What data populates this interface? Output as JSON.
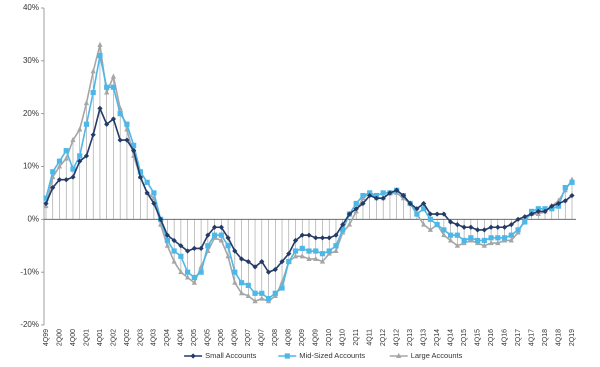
{
  "chart_data": {
    "type": "line",
    "categories": [
      "4Q99",
      null,
      "2Q00",
      null,
      "4Q00",
      null,
      "2Q01",
      null,
      "4Q01",
      null,
      "2Q02",
      null,
      "4Q02",
      null,
      "2Q03",
      null,
      "4Q03",
      null,
      "2Q04",
      null,
      "4Q04",
      null,
      "2Q05",
      null,
      "4Q05",
      null,
      "2Q06",
      null,
      "4Q06",
      null,
      "2Q07",
      null,
      "4Q07",
      null,
      "2Q08",
      null,
      "4Q08",
      null,
      "2Q09",
      null,
      "4Q09",
      null,
      "2Q10",
      null,
      "4Q10",
      null,
      "2Q11",
      null,
      "4Q11",
      null,
      "2Q12",
      null,
      "4Q12",
      null,
      "2Q13",
      null,
      "4Q13",
      null,
      "2Q14",
      null,
      "4Q14",
      null,
      "2Q15",
      null,
      "4Q15",
      null,
      "2Q16",
      null,
      "4Q16",
      null,
      "2Q17",
      null,
      "4Q17",
      null,
      "2Q18",
      null,
      "4Q18",
      null,
      "2Q19"
    ],
    "series": [
      {
        "name": "Small Accounts",
        "color": "#243a67",
        "marker": "diamond",
        "values": [
          3,
          6,
          7.5,
          7.5,
          8,
          11,
          12,
          16,
          21,
          18,
          19,
          15,
          15,
          13,
          8,
          5,
          3,
          0,
          -3,
          -4,
          -5,
          -6,
          -5.5,
          -5.5,
          -3,
          -1.5,
          -1.5,
          -3.5,
          -6,
          -7.5,
          -8,
          -9,
          -8,
          -10,
          -9.5,
          -8,
          -6.5,
          -4,
          -3,
          -3,
          -3.5,
          -3.5,
          -3.5,
          -3,
          -1,
          1,
          2,
          3,
          4.5,
          4,
          4,
          5,
          5.5,
          4.5,
          3,
          2,
          3,
          1,
          1,
          1,
          -0.5,
          -1,
          -1.5,
          -1.5,
          -2,
          -2,
          -1.5,
          -1.5,
          -1.5,
          -1,
          0,
          0.5,
          1,
          1.5,
          1.5,
          2.5,
          3,
          3.5,
          4.5
        ]
      },
      {
        "name": "Mid-Sized Accounts",
        "color": "#4db8e8",
        "marker": "square",
        "values": [
          4,
          9,
          11,
          13,
          9.5,
          12,
          18,
          24,
          31,
          25,
          25,
          20,
          18,
          14,
          9,
          7,
          5,
          0,
          -4,
          -6,
          -7,
          -10,
          -11,
          -10,
          -5,
          -3,
          -3,
          -5,
          -10,
          -12,
          -12.5,
          -14,
          -14,
          -15,
          -14,
          -13,
          -8,
          -6,
          -5.5,
          -6,
          -6,
          -6.5,
          -6,
          -5,
          -2,
          1,
          3,
          4.5,
          5,
          4.5,
          5,
          5,
          5.5,
          4.5,
          3,
          1,
          2,
          0,
          -1,
          -2,
          -3,
          -3,
          -4,
          -3.5,
          -4,
          -4,
          -3.5,
          -3.5,
          -3.5,
          -3,
          -2,
          -0.5,
          1.5,
          2,
          2,
          2,
          2.5,
          6,
          7
        ]
      },
      {
        "name": "Large Accounts",
        "color": "#a6a6a6",
        "marker": "triangle",
        "values": [
          2.5,
          8,
          10,
          11.5,
          15,
          17,
          22,
          28,
          33,
          24,
          27,
          21,
          17,
          12,
          8,
          5,
          4,
          -1,
          -5,
          -8,
          -10,
          -11,
          -12,
          -9,
          -6,
          -3.5,
          -4,
          -7,
          -12,
          -14,
          -14.5,
          -15.5,
          -15,
          -15.5,
          -14.5,
          -12,
          -8,
          -7,
          -7,
          -7.5,
          -7.5,
          -8,
          -6.5,
          -6,
          -2.5,
          -1,
          1.5,
          4,
          5,
          4,
          4,
          5,
          5,
          4,
          3,
          1,
          -1,
          -2,
          -1,
          -3,
          -4,
          -5,
          -4.5,
          -4,
          -4.5,
          -5,
          -4.5,
          -4.5,
          -4,
          -4,
          -2.5,
          0,
          1,
          1,
          1.5,
          2.5,
          3.5,
          5.5,
          7.5
        ]
      }
    ],
    "drop_lines": true,
    "ylim": [
      -20,
      40
    ],
    "yticks": [
      {
        "value": -20,
        "label": "-20%"
      },
      {
        "value": -10,
        "label": "-10%"
      },
      {
        "value": 0,
        "label": "0%"
      },
      {
        "value": 10,
        "label": "10%"
      },
      {
        "value": 20,
        "label": "20%"
      },
      {
        "value": 30,
        "label": "30%"
      },
      {
        "value": 40,
        "label": "40%"
      }
    ],
    "grid": false,
    "legend": "bottom"
  }
}
